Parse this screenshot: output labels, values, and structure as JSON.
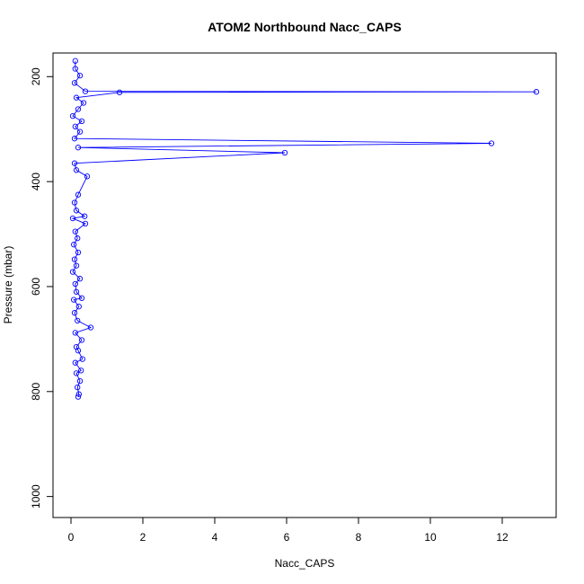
{
  "chart_data": {
    "type": "line",
    "title": "ATOM2 Northbound Nacc_CAPS",
    "xlabel": "Nacc_CAPS",
    "ylabel": "Pressure (mbar)",
    "xlim": [
      -0.5,
      13.5
    ],
    "ylim": [
      1040,
      155
    ],
    "y_reversed": true,
    "x_ticks": [
      0,
      2,
      4,
      6,
      8,
      10,
      12
    ],
    "y_ticks": [
      200,
      400,
      600,
      800,
      1000
    ],
    "grid": false,
    "legend": "none",
    "series": [
      {
        "color": "#0000ff",
        "marker": "open-circle",
        "points": [
          [
            0.2,
            810
          ],
          [
            0.22,
            805
          ],
          [
            0.18,
            792
          ],
          [
            0.25,
            780
          ],
          [
            0.15,
            765
          ],
          [
            0.28,
            760
          ],
          [
            0.12,
            745
          ],
          [
            0.32,
            738
          ],
          [
            0.2,
            722
          ],
          [
            0.15,
            715
          ],
          [
            0.3,
            702
          ],
          [
            0.12,
            688
          ],
          [
            0.55,
            678
          ],
          [
            0.18,
            665
          ],
          [
            0.1,
            650
          ],
          [
            0.22,
            638
          ],
          [
            0.08,
            625
          ],
          [
            0.3,
            622
          ],
          [
            0.15,
            610
          ],
          [
            0.12,
            595
          ],
          [
            0.25,
            585
          ],
          [
            0.05,
            572
          ],
          [
            0.15,
            560
          ],
          [
            0.1,
            548
          ],
          [
            0.2,
            535
          ],
          [
            0.08,
            520
          ],
          [
            0.18,
            508
          ],
          [
            0.12,
            495
          ],
          [
            0.4,
            480
          ],
          [
            0.05,
            470
          ],
          [
            0.38,
            466
          ],
          [
            0.15,
            455
          ],
          [
            0.1,
            440
          ],
          [
            0.2,
            425
          ],
          [
            0.45,
            390
          ],
          [
            0.15,
            378
          ],
          [
            0.1,
            365
          ],
          [
            5.95,
            345
          ],
          [
            0.2,
            335
          ],
          [
            11.7,
            327
          ],
          [
            0.1,
            318
          ],
          [
            0.25,
            305
          ],
          [
            0.12,
            295
          ],
          [
            0.3,
            285
          ],
          [
            0.05,
            275
          ],
          [
            0.2,
            262
          ],
          [
            0.35,
            250
          ],
          [
            0.15,
            240
          ],
          [
            1.35,
            230
          ],
          [
            12.95,
            229
          ],
          [
            0.4,
            228
          ],
          [
            0.1,
            212
          ],
          [
            0.25,
            198
          ],
          [
            0.12,
            185
          ],
          [
            0.12,
            170
          ]
        ]
      }
    ]
  }
}
